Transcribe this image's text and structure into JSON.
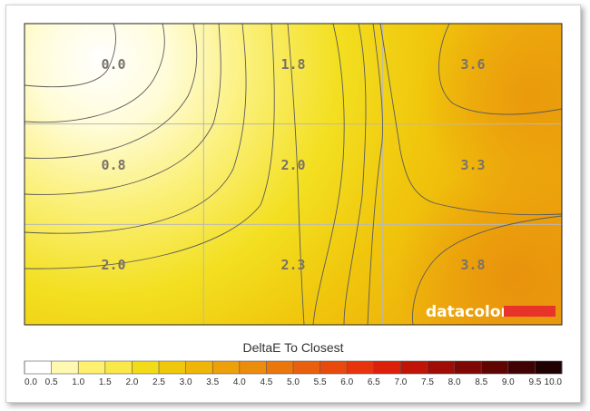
{
  "chart_data": {
    "type": "heatmap",
    "title": "",
    "rows": 3,
    "cols": 3,
    "cells": [
      {
        "row": 0,
        "col": 0,
        "value": 0.0,
        "label": "0.0"
      },
      {
        "row": 0,
        "col": 1,
        "value": 1.8,
        "label": "1.8"
      },
      {
        "row": 0,
        "col": 2,
        "value": 3.6,
        "label": "3.6"
      },
      {
        "row": 1,
        "col": 0,
        "value": 0.8,
        "label": "0.8"
      },
      {
        "row": 1,
        "col": 1,
        "value": 2.0,
        "label": "2.0"
      },
      {
        "row": 1,
        "col": 2,
        "value": 3.3,
        "label": "3.3"
      },
      {
        "row": 2,
        "col": 0,
        "value": 2.0,
        "label": "2.0"
      },
      {
        "row": 2,
        "col": 1,
        "value": 2.3,
        "label": "2.3"
      },
      {
        "row": 2,
        "col": 2,
        "value": 3.8,
        "label": "3.8"
      }
    ],
    "legend": {
      "title": "DeltaE To Closest",
      "range": [
        0,
        10
      ],
      "ticks": [
        "0.0",
        "0.5",
        "1.0",
        "1.5",
        "2.0",
        "2.5",
        "3.0",
        "3.5",
        "4.0",
        "4.5",
        "5.0",
        "5.5",
        "6.0",
        "6.5",
        "7.0",
        "7.5",
        "8.0",
        "8.5",
        "9.0",
        "9.5",
        "10.0"
      ],
      "colors": [
        "#ffffff",
        "#fff8b0",
        "#fff070",
        "#f9e84a",
        "#f2dc1a",
        "#efc80c",
        "#efb508",
        "#eea00a",
        "#ec8c0c",
        "#ea760c",
        "#e8600d",
        "#e84a0d",
        "#e8340c",
        "#dc200a",
        "#c01408",
        "#a00c06",
        "#800804",
        "#600402",
        "#400202",
        "#200000"
      ]
    },
    "grid": true
  },
  "logo": {
    "text": "datacolor",
    "accent_color": "#e8332a"
  }
}
